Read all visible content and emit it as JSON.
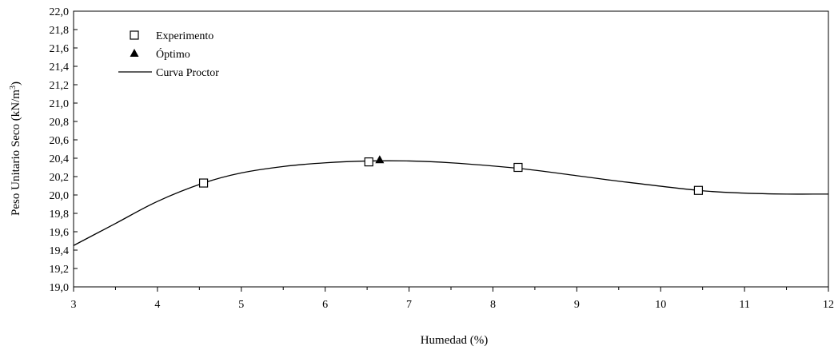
{
  "chart_data": {
    "type": "scatter",
    "title": "",
    "xlabel": "Humedad (%)",
    "ylabel_main": "Peso Unitario Seco (kN/m",
    "ylabel_sup": "3",
    "ylabel_tail": ")",
    "xlim": [
      3,
      12
    ],
    "ylim": [
      19.0,
      22.0
    ],
    "x_ticks": [
      3,
      4,
      5,
      6,
      7,
      8,
      9,
      10,
      11,
      12
    ],
    "y_ticks": [
      "19,0",
      "19,2",
      "19,4",
      "19,6",
      "19,8",
      "20,0",
      "20,2",
      "20,4",
      "20,6",
      "20,8",
      "21,0",
      "21,2",
      "21,4",
      "21,6",
      "21,8",
      "22,0"
    ],
    "grid": false,
    "legend_position": "top-left",
    "legend": [
      {
        "label": "Experimento",
        "marker": "square"
      },
      {
        "label": "Óptimo",
        "marker": "triangle"
      },
      {
        "label": "Curva Proctor",
        "marker": "line"
      }
    ],
    "series": [
      {
        "name": "Experimento",
        "kind": "points",
        "marker": "square",
        "x": [
          4.55,
          6.52,
          8.3,
          10.45
        ],
        "y": [
          20.13,
          20.36,
          20.3,
          20.05
        ]
      },
      {
        "name": "Óptimo",
        "kind": "points",
        "marker": "triangle",
        "x": [
          6.65
        ],
        "y": [
          20.38
        ]
      },
      {
        "name": "Curva Proctor",
        "kind": "line",
        "x": [
          3.0,
          3.5,
          4.0,
          4.55,
          5.0,
          5.5,
          6.0,
          6.52,
          7.0,
          7.5,
          8.3,
          9.0,
          9.5,
          10.45,
          11.0,
          11.5,
          12.0
        ],
        "y": [
          19.45,
          19.69,
          19.93,
          20.13,
          20.24,
          20.31,
          20.35,
          20.37,
          20.37,
          20.35,
          20.29,
          20.21,
          20.15,
          20.05,
          20.02,
          20.01,
          20.01
        ]
      }
    ]
  },
  "colors": {
    "axis": "#000000",
    "marker_fill": "#ffffff",
    "line": "#000000"
  }
}
